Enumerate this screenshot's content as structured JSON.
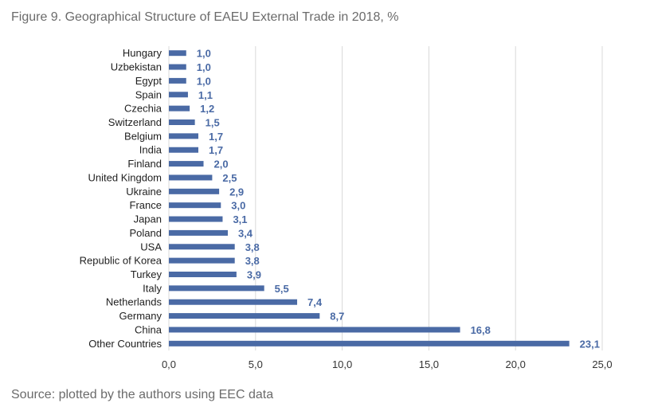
{
  "title": "Figure 9. Geographical Structure of EAEU External Trade in 2018, %",
  "source": "Source: plotted by the authors using EEC data",
  "chart_data": {
    "type": "bar",
    "orientation": "horizontal",
    "categories": [
      "Hungary",
      "Uzbekistan",
      "Egypt",
      "Spain",
      "Czechia",
      "Switzerland",
      "Belgium",
      "India",
      "Finland",
      "United Kingdom",
      "Ukraine",
      "France",
      "Japan",
      "Poland",
      "USA",
      "Republic of Korea",
      "Turkey",
      "Italy",
      "Netherlands",
      "Germany",
      "China",
      "Other Countries"
    ],
    "values": [
      1.0,
      1.0,
      1.0,
      1.1,
      1.2,
      1.5,
      1.7,
      1.7,
      2.0,
      2.5,
      2.9,
      3.0,
      3.1,
      3.4,
      3.8,
      3.8,
      3.9,
      5.5,
      7.4,
      8.7,
      16.8,
      23.1
    ],
    "value_labels": [
      "1,0",
      "1,0",
      "1,0",
      "1,1",
      "1,2",
      "1,5",
      "1,7",
      "1,7",
      "2,0",
      "2,5",
      "2,9",
      "3,0",
      "3,1",
      "3,4",
      "3,8",
      "3,8",
      "3,9",
      "5,5",
      "7,4",
      "8,7",
      "16,8",
      "23,1"
    ],
    "x_ticks": [
      0,
      5,
      10,
      15,
      20,
      25
    ],
    "x_tick_labels": [
      "0,0",
      "5,0",
      "10,0",
      "15,0",
      "20,0",
      "25,0"
    ],
    "xlim": [
      0,
      25
    ],
    "grid": "vertical",
    "bar_color": "#4a6aa5",
    "label_color": "#4a6aa5"
  }
}
